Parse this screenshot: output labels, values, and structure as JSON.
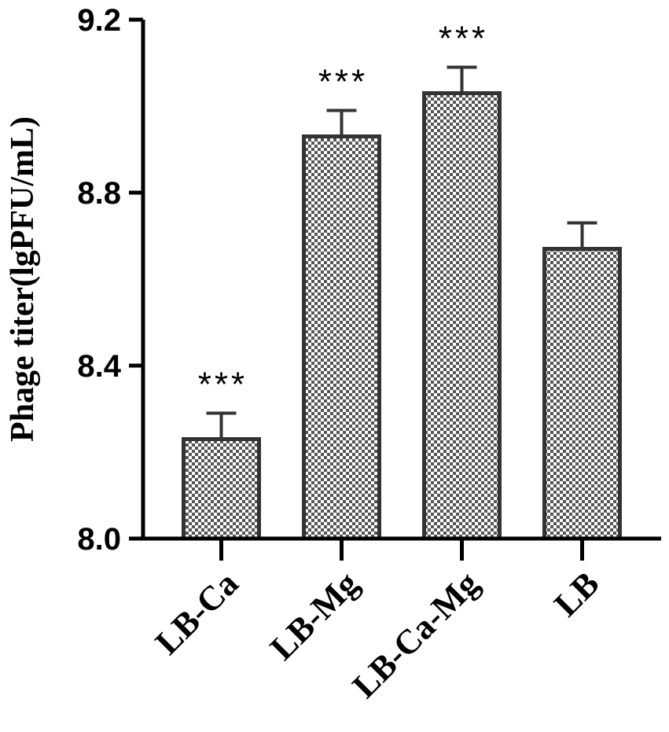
{
  "chart_data": {
    "type": "bar",
    "categories": [
      "LB-Ca",
      "LB-Mg",
      "LB-Ca-Mg",
      "LB"
    ],
    "values": [
      8.23,
      8.93,
      9.03,
      8.67
    ],
    "errors": [
      0.06,
      0.06,
      0.06,
      0.06
    ],
    "significance": [
      "***",
      "***",
      "***",
      ""
    ],
    "ylabel": "Phage titer(lgPFU/mL)",
    "xlabel": "",
    "ylim": [
      8.0,
      9.2
    ],
    "yticks": [
      "8.0",
      "8.4",
      "8.8",
      "9.2"
    ],
    "grid": false,
    "bar_pattern": "checkerboard",
    "colors": {
      "bar_fill_dark": "#555555",
      "bar_fill_light": "#ffffff",
      "bar_stroke": "#333333",
      "axis": "#000000"
    }
  }
}
